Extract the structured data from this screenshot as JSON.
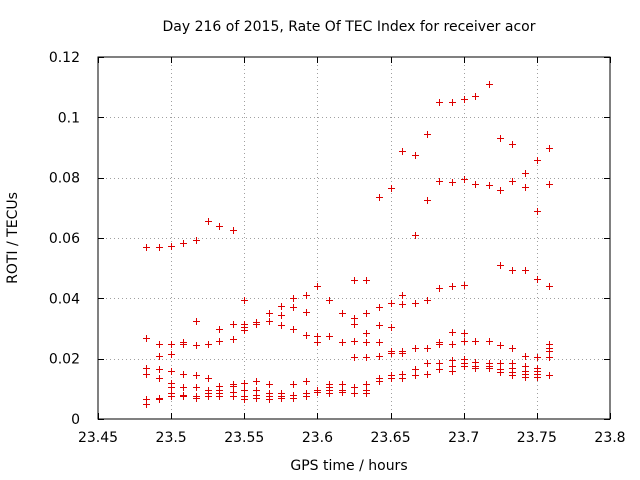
{
  "chart_data": {
    "type": "scatter",
    "title": "Day 216 of 2015, Rate Of TEC Index for receiver acor",
    "xlabel": "GPS time / hours",
    "ylabel": "ROTI / TECUs",
    "xlim": [
      23.45,
      23.8
    ],
    "ylim": [
      0,
      0.12
    ],
    "xticks": [
      23.45,
      23.5,
      23.55,
      23.6,
      23.65,
      23.7,
      23.75,
      23.8
    ],
    "xtick_labels": [
      "23.45",
      "23.5",
      "23.55",
      "23.6",
      "23.65",
      "23.7",
      "23.75",
      "23.8"
    ],
    "yticks": [
      0,
      0.02,
      0.04,
      0.06,
      0.08,
      0.1,
      0.12
    ],
    "ytick_labels": [
      "0",
      "0.02",
      "0.04",
      "0.06",
      "0.08",
      "0.1",
      "0.12"
    ],
    "grid": true,
    "marker": "+",
    "color": "#dd0000",
    "series": [
      {
        "name": "ROTI",
        "points": [
          [
            23.483,
            0.057
          ],
          [
            23.483,
            0.027
          ],
          [
            23.483,
            0.017
          ],
          [
            23.483,
            0.015
          ],
          [
            23.483,
            0.0065
          ],
          [
            23.483,
            0.005
          ],
          [
            23.492,
            0.057
          ],
          [
            23.492,
            0.025
          ],
          [
            23.492,
            0.021
          ],
          [
            23.492,
            0.0165
          ],
          [
            23.492,
            0.0135
          ],
          [
            23.492,
            0.007
          ],
          [
            23.492,
            0.0065
          ],
          [
            23.5,
            0.0575
          ],
          [
            23.5,
            0.025
          ],
          [
            23.5,
            0.0215
          ],
          [
            23.5,
            0.016
          ],
          [
            23.5,
            0.012
          ],
          [
            23.5,
            0.0105
          ],
          [
            23.5,
            0.0085
          ],
          [
            23.5,
            0.0075
          ],
          [
            23.508,
            0.0585
          ],
          [
            23.508,
            0.0255
          ],
          [
            23.508,
            0.025
          ],
          [
            23.508,
            0.015
          ],
          [
            23.508,
            0.0105
          ],
          [
            23.508,
            0.008
          ],
          [
            23.508,
            0.0075
          ],
          [
            23.517,
            0.0595
          ],
          [
            23.517,
            0.0325
          ],
          [
            23.517,
            0.0245
          ],
          [
            23.517,
            0.0145
          ],
          [
            23.517,
            0.0105
          ],
          [
            23.517,
            0.0075
          ],
          [
            23.517,
            0.007
          ],
          [
            23.525,
            0.0655
          ],
          [
            23.525,
            0.025
          ],
          [
            23.525,
            0.0135
          ],
          [
            23.525,
            0.0095
          ],
          [
            23.525,
            0.0085
          ],
          [
            23.525,
            0.0075
          ],
          [
            23.533,
            0.064
          ],
          [
            23.533,
            0.03
          ],
          [
            23.533,
            0.026
          ],
          [
            23.533,
            0.011
          ],
          [
            23.533,
            0.0095
          ],
          [
            23.533,
            0.0085
          ],
          [
            23.533,
            0.0075
          ],
          [
            23.542,
            0.0625
          ],
          [
            23.542,
            0.0315
          ],
          [
            23.542,
            0.0265
          ],
          [
            23.542,
            0.0115
          ],
          [
            23.542,
            0.011
          ],
          [
            23.542,
            0.009
          ],
          [
            23.542,
            0.0075
          ],
          [
            23.55,
            0.0395
          ],
          [
            23.55,
            0.0315
          ],
          [
            23.55,
            0.0305
          ],
          [
            23.55,
            0.0295
          ],
          [
            23.55,
            0.012
          ],
          [
            23.55,
            0.0095
          ],
          [
            23.55,
            0.0075
          ],
          [
            23.55,
            0.0065
          ],
          [
            23.558,
            0.032
          ],
          [
            23.558,
            0.0315
          ],
          [
            23.558,
            0.0125
          ],
          [
            23.558,
            0.0095
          ],
          [
            23.558,
            0.008
          ],
          [
            23.558,
            0.007
          ],
          [
            23.567,
            0.035
          ],
          [
            23.567,
            0.0325
          ],
          [
            23.567,
            0.0115
          ],
          [
            23.567,
            0.0085
          ],
          [
            23.567,
            0.0075
          ],
          [
            23.567,
            0.0065
          ],
          [
            23.575,
            0.0375
          ],
          [
            23.575,
            0.0345
          ],
          [
            23.575,
            0.031
          ],
          [
            23.575,
            0.0085
          ],
          [
            23.575,
            0.0075
          ],
          [
            23.575,
            0.007
          ],
          [
            23.583,
            0.04
          ],
          [
            23.583,
            0.037
          ],
          [
            23.583,
            0.03
          ],
          [
            23.583,
            0.0115
          ],
          [
            23.583,
            0.008
          ],
          [
            23.583,
            0.007
          ],
          [
            23.592,
            0.041
          ],
          [
            23.592,
            0.0355
          ],
          [
            23.592,
            0.028
          ],
          [
            23.592,
            0.0125
          ],
          [
            23.592,
            0.0085
          ],
          [
            23.592,
            0.0075
          ],
          [
            23.6,
            0.044
          ],
          [
            23.6,
            0.0275
          ],
          [
            23.6,
            0.0255
          ],
          [
            23.6,
            0.0095
          ],
          [
            23.6,
            0.009
          ],
          [
            23.608,
            0.0395
          ],
          [
            23.608,
            0.0275
          ],
          [
            23.608,
            0.0115
          ],
          [
            23.608,
            0.0105
          ],
          [
            23.608,
            0.0095
          ],
          [
            23.608,
            0.0085
          ],
          [
            23.617,
            0.035
          ],
          [
            23.617,
            0.0255
          ],
          [
            23.617,
            0.0115
          ],
          [
            23.617,
            0.0095
          ],
          [
            23.617,
            0.009
          ],
          [
            23.625,
            0.046
          ],
          [
            23.625,
            0.0335
          ],
          [
            23.625,
            0.0315
          ],
          [
            23.625,
            0.026
          ],
          [
            23.625,
            0.0205
          ],
          [
            23.625,
            0.0105
          ],
          [
            23.625,
            0.0085
          ],
          [
            23.633,
            0.046
          ],
          [
            23.633,
            0.035
          ],
          [
            23.633,
            0.0285
          ],
          [
            23.633,
            0.0255
          ],
          [
            23.633,
            0.0205
          ],
          [
            23.633,
            0.0115
          ],
          [
            23.633,
            0.0095
          ],
          [
            23.633,
            0.0085
          ],
          [
            23.642,
            0.0735
          ],
          [
            23.642,
            0.037
          ],
          [
            23.642,
            0.031
          ],
          [
            23.642,
            0.0255
          ],
          [
            23.642,
            0.021
          ],
          [
            23.642,
            0.0135
          ],
          [
            23.642,
            0.0125
          ],
          [
            23.65,
            0.0765
          ],
          [
            23.65,
            0.0385
          ],
          [
            23.65,
            0.0305
          ],
          [
            23.65,
            0.0225
          ],
          [
            23.65,
            0.022
          ],
          [
            23.65,
            0.0145
          ],
          [
            23.65,
            0.0135
          ],
          [
            23.658,
            0.089
          ],
          [
            23.658,
            0.041
          ],
          [
            23.658,
            0.038
          ],
          [
            23.658,
            0.0225
          ],
          [
            23.658,
            0.022
          ],
          [
            23.658,
            0.015
          ],
          [
            23.658,
            0.0135
          ],
          [
            23.667,
            0.0875
          ],
          [
            23.667,
            0.061
          ],
          [
            23.667,
            0.0385
          ],
          [
            23.667,
            0.0235
          ],
          [
            23.667,
            0.0165
          ],
          [
            23.667,
            0.0145
          ],
          [
            23.675,
            0.0945
          ],
          [
            23.675,
            0.0725
          ],
          [
            23.675,
            0.0395
          ],
          [
            23.675,
            0.0235
          ],
          [
            23.675,
            0.0185
          ],
          [
            23.675,
            0.015
          ],
          [
            23.683,
            0.105
          ],
          [
            23.683,
            0.079
          ],
          [
            23.683,
            0.0435
          ],
          [
            23.683,
            0.0255
          ],
          [
            23.683,
            0.025
          ],
          [
            23.683,
            0.0185
          ],
          [
            23.683,
            0.0165
          ],
          [
            23.692,
            0.105
          ],
          [
            23.692,
            0.0785
          ],
          [
            23.692,
            0.044
          ],
          [
            23.692,
            0.029
          ],
          [
            23.692,
            0.025
          ],
          [
            23.692,
            0.0195
          ],
          [
            23.692,
            0.0175
          ],
          [
            23.692,
            0.016
          ],
          [
            23.7,
            0.106
          ],
          [
            23.7,
            0.0795
          ],
          [
            23.7,
            0.0445
          ],
          [
            23.7,
            0.0285
          ],
          [
            23.7,
            0.026
          ],
          [
            23.7,
            0.02
          ],
          [
            23.7,
            0.0185
          ],
          [
            23.7,
            0.0175
          ],
          [
            23.708,
            0.107
          ],
          [
            23.708,
            0.078
          ],
          [
            23.708,
            0.026
          ],
          [
            23.708,
            0.019
          ],
          [
            23.708,
            0.0175
          ],
          [
            23.708,
            0.017
          ],
          [
            23.717,
            0.111
          ],
          [
            23.717,
            0.0775
          ],
          [
            23.717,
            0.026
          ],
          [
            23.717,
            0.0185
          ],
          [
            23.717,
            0.0175
          ],
          [
            23.717,
            0.017
          ],
          [
            23.725,
            0.093
          ],
          [
            23.725,
            0.076
          ],
          [
            23.725,
            0.051
          ],
          [
            23.725,
            0.0245
          ],
          [
            23.725,
            0.0185
          ],
          [
            23.725,
            0.0165
          ],
          [
            23.725,
            0.0155
          ],
          [
            23.733,
            0.091
          ],
          [
            23.733,
            0.079
          ],
          [
            23.733,
            0.0495
          ],
          [
            23.733,
            0.0235
          ],
          [
            23.733,
            0.0185
          ],
          [
            23.733,
            0.017
          ],
          [
            23.733,
            0.0155
          ],
          [
            23.733,
            0.0145
          ],
          [
            23.742,
            0.0815
          ],
          [
            23.742,
            0.077
          ],
          [
            23.742,
            0.0495
          ],
          [
            23.742,
            0.021
          ],
          [
            23.742,
            0.0175
          ],
          [
            23.742,
            0.016
          ],
          [
            23.742,
            0.015
          ],
          [
            23.742,
            0.014
          ],
          [
            23.75,
            0.086
          ],
          [
            23.75,
            0.069
          ],
          [
            23.75,
            0.0465
          ],
          [
            23.75,
            0.0205
          ],
          [
            23.75,
            0.017
          ],
          [
            23.75,
            0.016
          ],
          [
            23.75,
            0.015
          ],
          [
            23.75,
            0.014
          ],
          [
            23.758,
            0.09
          ],
          [
            23.758,
            0.078
          ],
          [
            23.758,
            0.044
          ],
          [
            23.758,
            0.025
          ],
          [
            23.758,
            0.0235
          ],
          [
            23.758,
            0.0225
          ],
          [
            23.758,
            0.0205
          ],
          [
            23.758,
            0.0145
          ]
        ]
      }
    ]
  }
}
